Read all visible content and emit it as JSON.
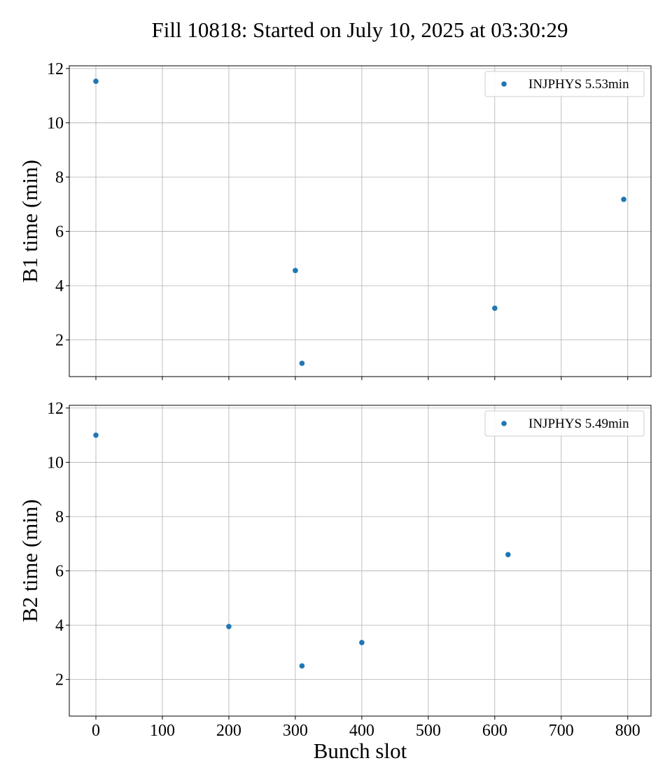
{
  "figure": {
    "title": "Fill 10818: Started on July 10, 2025 at 03:30:29"
  },
  "chart_data": [
    {
      "type": "scatter",
      "xlabel": "",
      "ylabel": "B1 time (min)",
      "xlim": [
        -40,
        835
      ],
      "ylim": [
        0.65,
        12.1
      ],
      "xticks": [
        0,
        100,
        200,
        300,
        400,
        500,
        600,
        700,
        800
      ],
      "yticks": [
        2,
        4,
        6,
        8,
        10,
        12
      ],
      "show_xtick_labels": false,
      "grid": true,
      "legend_position": "top-right",
      "color": "#1f77b4",
      "series": [
        {
          "name": "INJPHYS 5.53min",
          "points": [
            {
              "x": 0,
              "y": 11.53
            },
            {
              "x": 300,
              "y": 4.56
            },
            {
              "x": 310,
              "y": 1.14
            },
            {
              "x": 600,
              "y": 3.17
            },
            {
              "x": 794,
              "y": 7.18
            }
          ]
        }
      ]
    },
    {
      "type": "scatter",
      "xlabel": "Bunch slot",
      "ylabel": "B2 time (min)",
      "xlim": [
        -40,
        835
      ],
      "ylim": [
        0.65,
        12.1
      ],
      "xticks": [
        0,
        100,
        200,
        300,
        400,
        500,
        600,
        700,
        800
      ],
      "yticks": [
        2,
        4,
        6,
        8,
        10,
        12
      ],
      "show_xtick_labels": true,
      "grid": true,
      "legend_position": "top-right",
      "color": "#1f77b4",
      "series": [
        {
          "name": "INJPHYS 5.49min",
          "points": [
            {
              "x": 0,
              "y": 11.0
            },
            {
              "x": 200,
              "y": 3.95
            },
            {
              "x": 310,
              "y": 2.5
            },
            {
              "x": 400,
              "y": 3.36
            },
            {
              "x": 620,
              "y": 6.6
            }
          ]
        }
      ]
    }
  ]
}
